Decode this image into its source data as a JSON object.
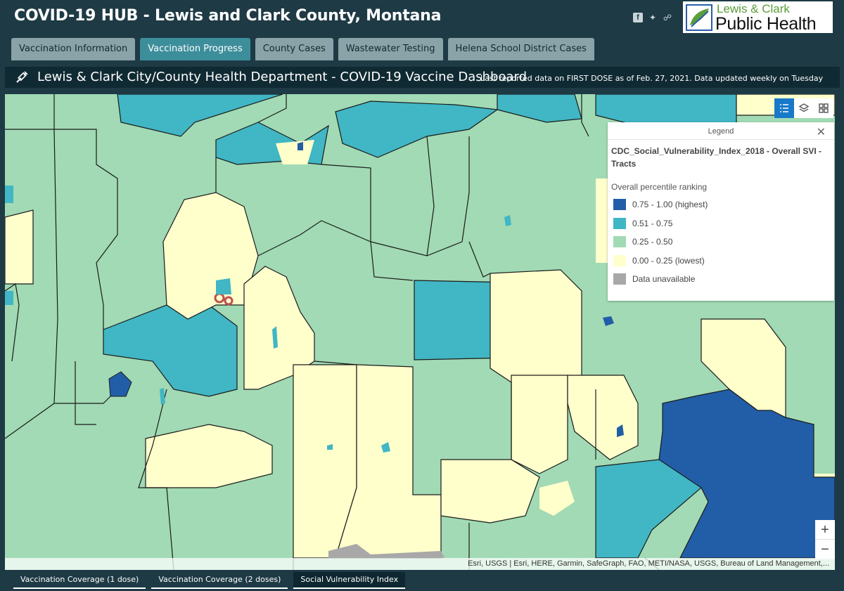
{
  "header": {
    "title": "COVID-19 HUB - Lewis and Clark County, Montana",
    "logo_line1": "Lewis & Clark",
    "logo_line2": "Public Health"
  },
  "tabs": [
    {
      "label": "Vaccination Information",
      "active": false
    },
    {
      "label": "Vaccination Progress",
      "active": true
    },
    {
      "label": "County Cases",
      "active": false
    },
    {
      "label": "Wastewater Testing",
      "active": false
    },
    {
      "label": "Helena School District Cases",
      "active": false
    }
  ],
  "dashboard": {
    "title": "Lewis & Clark City/County Health Department - COVID-19 Vaccine Dashboard",
    "subtitle": "Last reported data on FIRST DOSE as of Feb. 27, 2021. Data updated weekly on Tuesday"
  },
  "legend": {
    "title": "Legend",
    "layer_name": "CDC_Social_Vulnerability_Index_2018 - Overall SVI - Tracts",
    "field_name": "Overall percentile ranking",
    "items": [
      {
        "label": "0.75 - 1.00 (highest)",
        "color": "#225ea8"
      },
      {
        "label": "0.51 - 0.75",
        "color": "#41b6c4"
      },
      {
        "label": "0.25 - 0.50",
        "color": "#a1dab4"
      },
      {
        "label": "0.00 - 0.25 (lowest)",
        "color": "#ffffcc"
      },
      {
        "label": "Data unavailable",
        "color": "#a8a8a8"
      }
    ]
  },
  "map": {
    "attribution": "Esri, USGS | Esri, HERE, Garmin, SafeGraph, FAO, METI/NASA, USGS, Bureau of Land Management,...",
    "zoom_in": "+",
    "zoom_out": "−"
  },
  "bottom_tabs": [
    {
      "label": "Vaccination Coverage (1 dose)",
      "active": false
    },
    {
      "label": "Vaccination Coverage (2 doses)",
      "active": false
    },
    {
      "label": "Social Vulnerability Index",
      "active": true
    }
  ],
  "colors": {
    "highest": "#225ea8",
    "high": "#41b6c4",
    "mid": "#a1dab4",
    "low": "#ffffcc",
    "unavailable": "#a8a8a8"
  }
}
